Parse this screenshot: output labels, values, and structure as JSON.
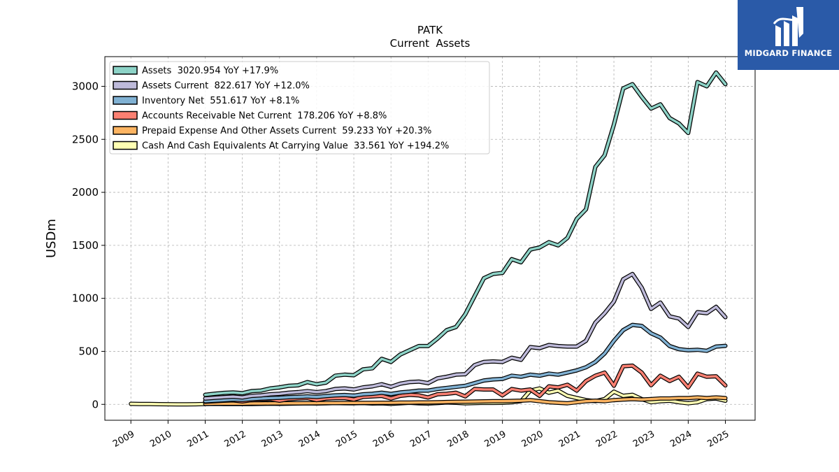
{
  "brand": {
    "name": "MIDGARD FINANCE",
    "color": "#2a5aa8"
  },
  "chart_data": {
    "type": "line",
    "title": "PATK",
    "subtitle": "Current  Assets",
    "ylabel": "USDm",
    "xlabel": "",
    "xlim": [
      2008.3,
      2025.8
    ],
    "ylim": [
      -150,
      3280
    ],
    "yticks": [
      0,
      500,
      1000,
      1500,
      2000,
      2500,
      3000
    ],
    "xticks": [
      "2009",
      "2010",
      "2011",
      "2012",
      "2013",
      "2014",
      "2015",
      "2016",
      "2017",
      "2018",
      "2019",
      "2020",
      "2021",
      "2022",
      "2023",
      "2024",
      "2025"
    ],
    "grid": true,
    "legend_position": "top-left",
    "series": [
      {
        "name": "Assets  3020.954 YoY +17.9%",
        "color": "#8dd3c7",
        "x": [
          2011.0,
          2011.25,
          2011.5,
          2011.75,
          2012.0,
          2012.25,
          2012.5,
          2012.75,
          2013.0,
          2013.25,
          2013.5,
          2013.75,
          2014.0,
          2014.25,
          2014.5,
          2014.75,
          2015.0,
          2015.25,
          2015.5,
          2015.75,
          2016.0,
          2016.25,
          2016.5,
          2016.75,
          2017.0,
          2017.25,
          2017.5,
          2017.75,
          2018.0,
          2018.25,
          2018.5,
          2018.75,
          2019.0,
          2019.25,
          2019.5,
          2019.75,
          2020.0,
          2020.25,
          2020.5,
          2020.75,
          2021.0,
          2021.25,
          2021.5,
          2021.75,
          2022.0,
          2022.25,
          2022.5,
          2022.75,
          2023.0,
          2023.25,
          2023.5,
          2023.75,
          2024.0,
          2024.25,
          2024.5,
          2024.75,
          2025.0
        ],
        "y": [
          90,
          100,
          108,
          112,
          105,
          125,
          130,
          150,
          160,
          175,
          180,
          210,
          190,
          205,
          270,
          280,
          275,
          330,
          340,
          430,
          400,
          470,
          510,
          550,
          550,
          620,
          700,
          730,
          850,
          1020,
          1190,
          1230,
          1240,
          1370,
          1340,
          1460,
          1480,
          1530,
          1500,
          1570,
          1750,
          1840,
          2240,
          2350,
          2640,
          2980,
          3020,
          2900,
          2790,
          2830,
          2700,
          2650,
          2560,
          3040,
          3000,
          3130,
          3020
        ]
      },
      {
        "name": "Assets Current  822.617 YoY +12.0%",
        "color": "#bebada",
        "x": [
          2011.0,
          2011.25,
          2011.5,
          2011.75,
          2012.0,
          2012.25,
          2012.5,
          2012.75,
          2013.0,
          2013.25,
          2013.5,
          2013.75,
          2014.0,
          2014.25,
          2014.5,
          2014.75,
          2015.0,
          2015.25,
          2015.5,
          2015.75,
          2016.0,
          2016.25,
          2016.5,
          2016.75,
          2017.0,
          2017.25,
          2017.5,
          2017.75,
          2018.0,
          2018.25,
          2018.5,
          2018.75,
          2019.0,
          2019.25,
          2019.5,
          2019.75,
          2020.0,
          2020.25,
          2020.5,
          2020.75,
          2021.0,
          2021.25,
          2021.5,
          2021.75,
          2022.0,
          2022.25,
          2022.5,
          2022.75,
          2023.0,
          2023.25,
          2023.5,
          2023.75,
          2024.0,
          2024.25,
          2024.5,
          2024.75,
          2025.0
        ],
        "y": [
          55,
          62,
          68,
          72,
          65,
          80,
          85,
          95,
          100,
          110,
          115,
          125,
          115,
          125,
          145,
          150,
          140,
          160,
          170,
          190,
          165,
          195,
          210,
          215,
          200,
          245,
          260,
          280,
          285,
          370,
          400,
          405,
          400,
          440,
          420,
          540,
          530,
          560,
          550,
          545,
          545,
          600,
          770,
          860,
          970,
          1180,
          1230,
          1100,
          900,
          960,
          830,
          810,
          730,
          870,
          860,
          920,
          822
        ]
      },
      {
        "name": "Inventory Net  551.617 YoY +8.1%",
        "color": "#80b1d3",
        "x": [
          2011.0,
          2011.25,
          2011.5,
          2011.75,
          2012.0,
          2012.25,
          2012.5,
          2012.75,
          2013.0,
          2013.25,
          2013.5,
          2013.75,
          2014.0,
          2014.25,
          2014.5,
          2014.75,
          2015.0,
          2015.25,
          2015.5,
          2015.75,
          2016.0,
          2016.25,
          2016.5,
          2016.75,
          2017.0,
          2017.25,
          2017.5,
          2017.75,
          2018.0,
          2018.25,
          2018.5,
          2018.75,
          2019.0,
          2019.25,
          2019.5,
          2019.75,
          2020.0,
          2020.25,
          2020.5,
          2020.75,
          2021.0,
          2021.25,
          2021.5,
          2021.75,
          2022.0,
          2022.25,
          2022.5,
          2022.75,
          2023.0,
          2023.25,
          2023.5,
          2023.75,
          2024.0,
          2024.25,
          2024.5,
          2024.75,
          2025.0
        ],
        "y": [
          30,
          35,
          40,
          45,
          42,
          50,
          55,
          60,
          62,
          68,
          70,
          75,
          70,
          78,
          85,
          88,
          82,
          95,
          100,
          110,
          98,
          112,
          120,
          130,
          130,
          145,
          155,
          165,
          175,
          200,
          225,
          235,
          240,
          270,
          260,
          280,
          270,
          290,
          280,
          300,
          320,
          350,
          400,
          480,
          600,
          700,
          750,
          740,
          670,
          630,
          550,
          520,
          510,
          515,
          505,
          545,
          552
        ]
      },
      {
        "name": "Accounts Receivable Net Current  178.206 YoY +8.8%",
        "color": "#fb8072",
        "x": [
          2011.0,
          2011.25,
          2011.5,
          2011.75,
          2012.0,
          2012.25,
          2012.5,
          2012.75,
          2013.0,
          2013.25,
          2013.5,
          2013.75,
          2014.0,
          2014.25,
          2014.5,
          2014.75,
          2015.0,
          2015.25,
          2015.5,
          2015.75,
          2016.0,
          2016.25,
          2016.5,
          2016.75,
          2017.0,
          2017.25,
          2017.5,
          2017.75,
          2018.0,
          2018.25,
          2018.5,
          2018.75,
          2019.0,
          2019.25,
          2019.5,
          2019.75,
          2020.0,
          2020.25,
          2020.5,
          2020.75,
          2021.0,
          2021.25,
          2021.5,
          2021.75,
          2022.0,
          2022.25,
          2022.5,
          2022.75,
          2023.0,
          2023.25,
          2023.5,
          2023.75,
          2024.0,
          2024.25,
          2024.5,
          2024.75,
          2025.0
        ],
        "y": [
          25,
          30,
          35,
          38,
          28,
          40,
          45,
          50,
          35,
          50,
          55,
          60,
          40,
          55,
          60,
          60,
          45,
          70,
          75,
          80,
          55,
          80,
          90,
          85,
          65,
          95,
          100,
          110,
          75,
          145,
          140,
          140,
          85,
          145,
          130,
          140,
          80,
          170,
          160,
          185,
          130,
          220,
          270,
          300,
          175,
          360,
          365,
          300,
          180,
          270,
          220,
          260,
          160,
          290,
          260,
          265,
          178
        ]
      },
      {
        "name": "Prepaid Expense And Other Assets Current  59.233 YoY +20.3%",
        "color": "#fdb462",
        "x": [
          2011.0,
          2011.25,
          2011.5,
          2011.75,
          2012.0,
          2012.25,
          2012.5,
          2012.75,
          2013.0,
          2013.25,
          2013.5,
          2013.75,
          2014.0,
          2014.25,
          2014.5,
          2014.75,
          2015.0,
          2015.25,
          2015.5,
          2015.75,
          2016.0,
          2016.25,
          2016.5,
          2016.75,
          2017.0,
          2017.25,
          2017.5,
          2017.75,
          2018.0,
          2018.25,
          2018.5,
          2018.75,
          2019.0,
          2019.25,
          2019.5,
          2019.75,
          2020.0,
          2020.25,
          2020.5,
          2020.75,
          2021.0,
          2021.25,
          2021.5,
          2021.75,
          2022.0,
          2022.25,
          2022.5,
          2022.75,
          2023.0,
          2023.25,
          2023.5,
          2023.75,
          2024.0,
          2024.25,
          2024.5,
          2024.75,
          2025.0
        ],
        "y": [
          5,
          6,
          6,
          7,
          7,
          8,
          8,
          9,
          9,
          10,
          10,
          11,
          11,
          12,
          12,
          13,
          13,
          14,
          14,
          15,
          15,
          16,
          17,
          18,
          18,
          20,
          22,
          24,
          25,
          27,
          28,
          30,
          30,
          32,
          35,
          40,
          30,
          20,
          15,
          10,
          20,
          30,
          35,
          30,
          40,
          45,
          50,
          45,
          50,
          55,
          55,
          60,
          60,
          65,
          60,
          65,
          59
        ]
      },
      {
        "name": "Cash And Cash Equivalents At Carrying Value  33.561 YoY +194.2%",
        "color": "#ffffb3",
        "x": [
          2009.0,
          2009.25,
          2009.5,
          2009.75,
          2010.0,
          2010.25,
          2010.5,
          2010.75,
          2011.0,
          2011.25,
          2011.5,
          2011.75,
          2012.0,
          2012.25,
          2012.5,
          2012.75,
          2013.0,
          2013.25,
          2013.5,
          2013.75,
          2014.0,
          2014.25,
          2014.5,
          2014.75,
          2015.0,
          2015.25,
          2015.5,
          2015.75,
          2016.0,
          2016.25,
          2016.5,
          2016.75,
          2017.0,
          2017.25,
          2017.5,
          2017.75,
          2018.0,
          2018.25,
          2018.5,
          2018.75,
          2019.0,
          2019.25,
          2019.5,
          2019.75,
          2020.0,
          2020.25,
          2020.5,
          2020.75,
          2021.0,
          2021.25,
          2021.5,
          2021.75,
          2022.0,
          2022.25,
          2022.5,
          2022.75,
          2023.0,
          2023.25,
          2023.5,
          2023.75,
          2024.0,
          2024.25,
          2024.5,
          2024.75,
          2025.0
        ],
        "y": [
          5,
          4,
          3,
          2,
          1,
          0,
          0,
          1,
          3,
          5,
          4,
          3,
          3,
          4,
          5,
          6,
          5,
          6,
          8,
          10,
          8,
          10,
          12,
          11,
          10,
          12,
          8,
          10,
          5,
          10,
          15,
          10,
          8,
          12,
          18,
          15,
          10,
          12,
          15,
          14,
          15,
          20,
          30,
          130,
          150,
          110,
          130,
          80,
          60,
          40,
          30,
          50,
          120,
          80,
          90,
          50,
          20,
          30,
          35,
          20,
          10,
          20,
          50,
          55,
          34
        ]
      }
    ]
  }
}
